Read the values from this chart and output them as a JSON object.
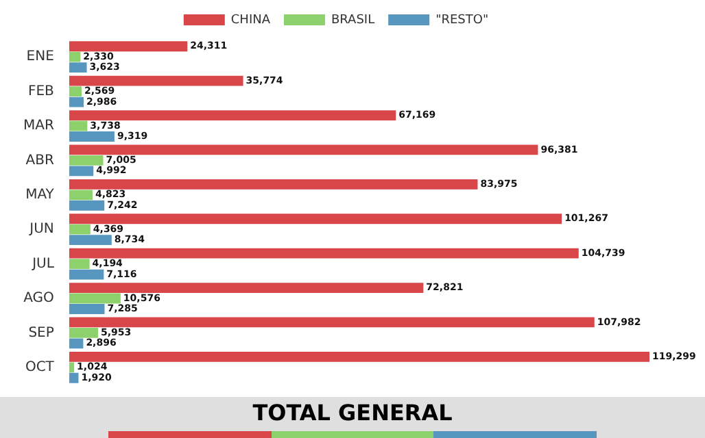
{
  "chart_data": {
    "type": "bar",
    "orientation": "horizontal",
    "categories": [
      "ENE",
      "FEB",
      "MAR",
      "ABR",
      "MAY",
      "JUN",
      "JUL",
      "AGO",
      "SEP",
      "OCT"
    ],
    "series": [
      {
        "name": "CHINA",
        "color": "#d9464a",
        "values": [
          24311,
          35774,
          67169,
          96381,
          83975,
          101267,
          104739,
          72821,
          107982,
          119299
        ],
        "value_labels": [
          "24,311",
          "35,774",
          "67,169",
          "96,381",
          "83,975",
          "101,267",
          "104,739",
          "72,821",
          "107,982",
          "119,299"
        ]
      },
      {
        "name": "BRASIL",
        "color": "#8dd16d",
        "values": [
          2330,
          2569,
          3738,
          7005,
          4823,
          4369,
          4194,
          10576,
          5953,
          1024
        ],
        "value_labels": [
          "2,330",
          "2,569",
          "3,738",
          "7,005",
          "4,823",
          "4,369",
          "4,194",
          "10,576",
          "5,953",
          "1,024"
        ]
      },
      {
        "name": "\"RESTO\"",
        "color": "#5796be",
        "values": [
          3623,
          2986,
          9319,
          4992,
          7242,
          8734,
          7116,
          7285,
          2896,
          1920
        ],
        "value_labels": [
          "3,623",
          "2,986",
          "9,319",
          "4,992",
          "7,242",
          "8,734",
          "7,116",
          "7,285",
          "2,896",
          "1,920"
        ]
      }
    ],
    "tick_labels": "y",
    "legend": "top",
    "annotations": [
      "TOTAL GENERAL"
    ]
  }
}
